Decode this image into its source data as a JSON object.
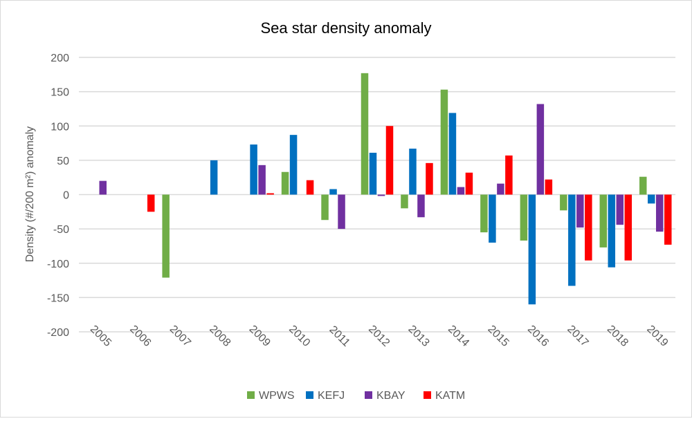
{
  "chart_data": {
    "type": "bar",
    "title": "Sea star density anomaly",
    "xlabel": "",
    "ylabel": "Density (#/200 m²) anomaly",
    "ylim": [
      -200,
      200
    ],
    "yticks": [
      200,
      150,
      100,
      50,
      0,
      -50,
      -100,
      -150,
      -200
    ],
    "grid": true,
    "legend_position": "bottom",
    "categories": [
      "2005",
      "2006",
      "2007",
      "2008",
      "2009",
      "2010",
      "2011",
      "2012",
      "2013",
      "2014",
      "2015",
      "2016",
      "2017",
      "2018",
      "2019"
    ],
    "series": [
      {
        "name": "WPWS",
        "color": "#70AD47",
        "values": [
          null,
          null,
          -121,
          null,
          null,
          33,
          -37,
          177,
          -20,
          153,
          -55,
          -67,
          -23,
          -77,
          26
        ]
      },
      {
        "name": "KEFJ",
        "color": "#0070C0",
        "values": [
          null,
          null,
          null,
          50,
          73,
          87,
          8,
          61,
          67,
          119,
          -70,
          -160,
          -133,
          -106,
          -13
        ]
      },
      {
        "name": "KBAY",
        "color": "#7030A0",
        "values": [
          20,
          null,
          null,
          null,
          43,
          null,
          -50,
          -2,
          -33,
          11,
          16,
          132,
          -48,
          -44,
          -54
        ]
      },
      {
        "name": "KATM",
        "color": "#FF0000",
        "values": [
          null,
          -25,
          null,
          null,
          2,
          21,
          null,
          100,
          46,
          32,
          57,
          22,
          -96,
          -96,
          -73
        ]
      }
    ]
  }
}
